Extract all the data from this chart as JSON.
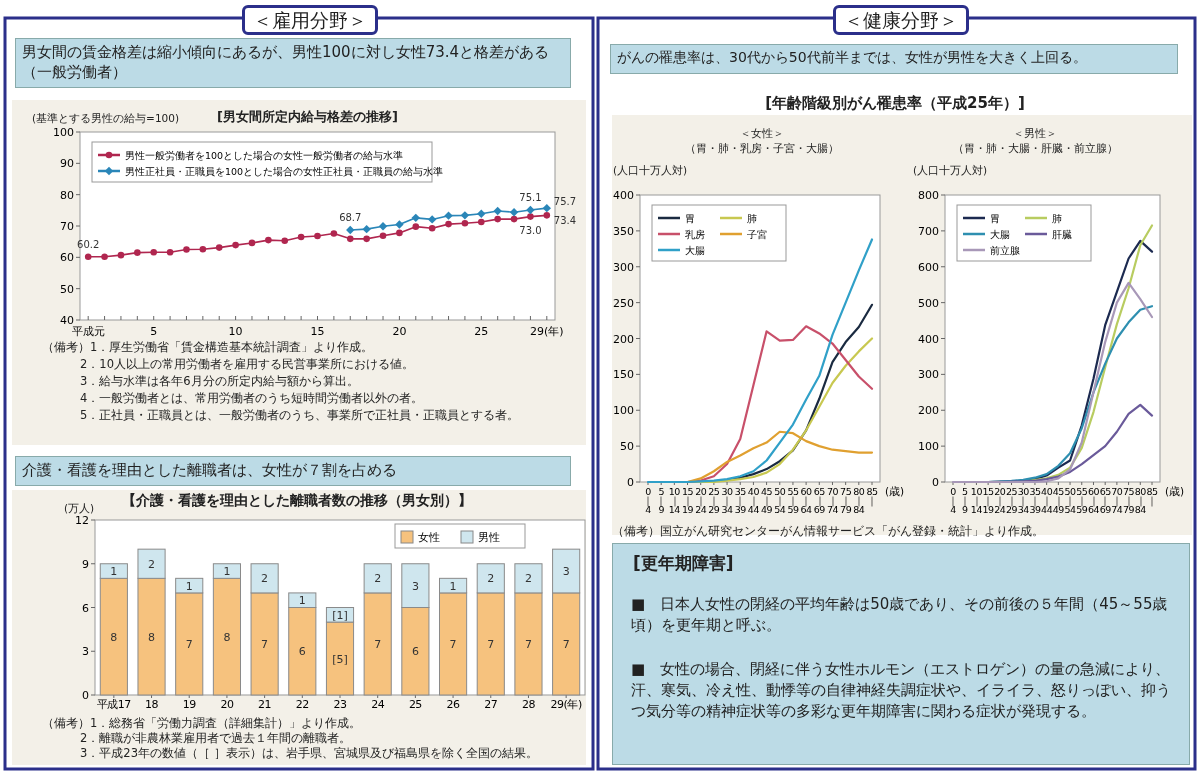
{
  "chart_data": [
    {
      "type": "line",
      "title": "[男女間所定内給与格差の推移]",
      "ylabel": "(基準とする男性の給与=100)",
      "annotations": [
        "＜雇用分野＞",
        "男女間の賃金格差は縮小傾向にあるが、男性100に対し女性73.4と格差がある（一般労働者）",
        "（備考）1．厚生労働省「賃金構造基本統計調査」より作成。",
        "2．10人以上の常用労働者を雇用する民営事業所における値。",
        "3．給与水準は各年6月分の所定内給与額から算出。",
        "4．一般労働者とは、常用労働者のうち短時間労働者以外の者。",
        "5．正社員・正職員とは、一般労働者のうち、事業所で正社員・正職員とする者。"
      ],
      "x": [
        1,
        2,
        3,
        4,
        5,
        6,
        7,
        8,
        9,
        10,
        11,
        12,
        13,
        14,
        15,
        16,
        17,
        18,
        19,
        20,
        21,
        22,
        23,
        24,
        25,
        26,
        27,
        28,
        29
      ],
      "series": [
        {
          "name": "男性一般労働者を100とした場合の女性一般労働者の給与水準",
          "color": "#b0264f",
          "marker": "circle",
          "values": [
            60.2,
            60.2,
            60.7,
            61.5,
            61.6,
            61.6,
            62.5,
            62.6,
            63.1,
            63.9,
            64.6,
            65.5,
            65.3,
            66.5,
            66.8,
            67.6,
            65.9,
            65.9,
            66.9,
            67.8,
            69.8,
            69.3,
            70.6,
            70.9,
            71.3,
            72.2,
            72.2,
            73.0,
            73.4
          ],
          "value_labels": [
            "60.2",
            null,
            null,
            null,
            null,
            null,
            null,
            null,
            null,
            null,
            null,
            null,
            null,
            null,
            null,
            null,
            null,
            null,
            null,
            null,
            null,
            null,
            null,
            null,
            null,
            null,
            null,
            "73.0",
            "73.4"
          ]
        },
        {
          "name": "男性正社員・正職員を100とした場合の女性正社員・正職員の給与水準",
          "color": "#2a86b8",
          "marker": "diamond",
          "x": [
            17,
            18,
            19,
            20,
            21,
            22,
            23,
            24,
            25,
            26,
            27,
            28,
            29
          ],
          "values": [
            68.7,
            69.0,
            69.9,
            70.5,
            72.6,
            72.1,
            73.3,
            73.4,
            73.9,
            74.8,
            74.4,
            75.1,
            75.7
          ],
          "value_labels": [
            "68.7",
            null,
            null,
            null,
            null,
            null,
            null,
            null,
            null,
            null,
            null,
            "75.1",
            "75.7"
          ]
        }
      ],
      "xlim": [
        0.5,
        29.5
      ],
      "xticks": [
        {
          "value": 1,
          "label": "平成元"
        },
        {
          "value": 2,
          "label": null
        },
        {
          "value": 3,
          "label": null
        },
        {
          "value": 4,
          "label": null
        },
        5,
        {
          "value": 6,
          "label": null
        },
        {
          "value": 7,
          "label": null
        },
        {
          "value": 8,
          "label": null
        },
        {
          "value": 9,
          "label": null
        },
        10,
        {
          "value": 11,
          "label": null
        },
        {
          "value": 12,
          "label": null
        },
        {
          "value": 13,
          "label": null
        },
        {
          "value": 14,
          "label": null
        },
        15,
        {
          "value": 16,
          "label": null
        },
        {
          "value": 17,
          "label": null
        },
        {
          "value": 18,
          "label": null
        },
        {
          "value": 19,
          "label": null
        },
        20,
        {
          "value": 21,
          "label": null
        },
        {
          "value": 22,
          "label": null
        },
        {
          "value": 23,
          "label": null
        },
        {
          "value": 24,
          "label": null
        },
        25,
        {
          "value": 26,
          "label": null
        },
        {
          "value": 27,
          "label": null
        },
        {
          "value": 28,
          "label": null
        },
        {
          "value": 29,
          "label": "29(年)"
        }
      ],
      "ylim": [
        40,
        100
      ],
      "yticks": [
        40,
        50,
        60,
        70,
        80,
        90,
        100
      ],
      "legend": "top left"
    },
    {
      "type": "bar",
      "stacked": true,
      "title": "【介護・看護を理由とした離職者数の推移（男女別）】",
      "ylabel": "(万人)",
      "annotations": [
        "介護・看護を理由とした離職者は、女性が７割を占める",
        "（備考）1．総務省「労働力調査（詳細集計）」より作成。",
        "2．離職が非農林業雇用者で過去１年間の離職者。",
        "3．平成23年の数値（［ ］表示）は、岩手県、宮城県及び福島県を除く全国の結果。"
      ],
      "categories": [
        "平成17",
        "18",
        "19",
        "20",
        "21",
        "22",
        "23",
        "24",
        "25",
        "26",
        "27",
        "28",
        "29(年)"
      ],
      "series": [
        {
          "name": "女性",
          "color": "#f6c27e",
          "values": [
            8,
            8,
            7,
            8,
            7,
            6,
            5,
            7,
            6,
            7,
            7,
            7,
            7
          ],
          "value_labels": [
            "8",
            "8",
            "7",
            "8",
            "7",
            "6",
            "[5]",
            "7",
            "6",
            "7",
            "7",
            "7",
            "7"
          ]
        },
        {
          "name": "男性",
          "color": "#cfe6ee",
          "values": [
            1,
            2,
            1,
            1,
            2,
            1,
            1,
            2,
            3,
            1,
            2,
            2,
            3
          ],
          "value_labels": [
            "1",
            "2",
            "1",
            "1",
            "2",
            "1",
            "[1]",
            "2",
            "3",
            "1",
            "2",
            "2",
            "3"
          ]
        }
      ],
      "ylim": [
        0,
        12
      ],
      "yticks": [
        0,
        3,
        6,
        9,
        12
      ],
      "legend": "top right"
    },
    {
      "type": "line",
      "title": "＜女性＞",
      "subtitle": "（胃・肺・乳房・子宮・大腸）",
      "ylabel": "(人口十万人対)",
      "xlabel": "(歳)",
      "annotations": [
        "＜健康分野＞",
        "がんの罹患率は、30代から50代前半までは、女性が男性を大きく上回る。",
        "[年齢階級別がん罹患率（平成25年）]"
      ],
      "categories": [
        "0\n｜\n4",
        "5\n｜\n9",
        "10\n｜\n14",
        "15\n｜\n19",
        "20\n｜\n24",
        "25\n｜\n29",
        "30\n｜\n34",
        "35\n｜\n39",
        "40\n｜\n44",
        "45\n｜\n49",
        "50\n｜\n54",
        "55\n｜\n59",
        "60\n｜\n64",
        "65\n｜\n69",
        "70\n｜\n74",
        "75\n｜\n79",
        "80\n｜\n84",
        "85\n｜"
      ],
      "series": [
        {
          "name": "胃",
          "color": "#1a2a40",
          "values": [
            null,
            null,
            null,
            0,
            0,
            1,
            3,
            6,
            11,
            18,
            29,
            44,
            72,
            116,
            167,
            195,
            216,
            247
          ]
        },
        {
          "name": "肺",
          "color": "#c8c850",
          "values": [
            null,
            null,
            null,
            0,
            0,
            0,
            2,
            4,
            7,
            13,
            25,
            45,
            72,
            105,
            138,
            162,
            182,
            200
          ]
        },
        {
          "name": "乳房",
          "color": "#c8506a",
          "values": [
            null,
            null,
            null,
            0,
            2,
            8,
            25,
            60,
            135,
            210,
            197,
            198,
            217,
            207,
            193,
            170,
            147,
            130
          ]
        },
        {
          "name": "子宮",
          "color": "#e0a030",
          "values": [
            null,
            null,
            null,
            0,
            5,
            15,
            28,
            37,
            47,
            55,
            70,
            68,
            57,
            50,
            45,
            43,
            41,
            41
          ]
        },
        {
          "name": "大腸",
          "color": "#30a0c8",
          "values": [
            0,
            0,
            0,
            0,
            1,
            2,
            4,
            8,
            15,
            30,
            55,
            80,
            115,
            148,
            205,
            250,
            295,
            338
          ]
        }
      ],
      "ylim": [
        0,
        400
      ],
      "yticks": [
        0,
        50,
        100,
        150,
        200,
        250,
        300,
        350,
        400
      ],
      "legend": "top left"
    },
    {
      "type": "line",
      "title": "＜男性＞",
      "subtitle": "（胃・肺・大腸・肝臓・前立腺）",
      "ylabel": "(人口十万人対)",
      "xlabel": "(歳)",
      "annotations": [
        "（備考）国立がん研究センターがん情報サービス「がん登録・統計」より作成。"
      ],
      "categories": [
        "0\n｜\n4",
        "5\n｜\n9",
        "10\n｜\n14",
        "15\n｜\n19",
        "20\n｜\n24",
        "25\n｜\n29",
        "30\n｜\n34",
        "35\n｜\n39",
        "40\n｜\n44",
        "45\n｜\n49",
        "50\n｜\n54",
        "55\n｜\n59",
        "60\n｜\n64",
        "65\n｜\n69",
        "70\n｜\n74",
        "75\n｜\n79",
        "80\n｜\n84",
        "85\n｜"
      ],
      "series": [
        {
          "name": "胃",
          "color": "#1c2a50",
          "values": [
            null,
            null,
            null,
            0,
            1,
            2,
            4,
            8,
            18,
            40,
            60,
            158,
            288,
            437,
            530,
            623,
            672,
            642
          ]
        },
        {
          "name": "肺",
          "color": "#b8cc60",
          "values": [
            null,
            null,
            null,
            null,
            null,
            null,
            2,
            5,
            10,
            20,
            40,
            95,
            195,
            320,
            440,
            540,
            660,
            715
          ]
        },
        {
          "name": "大腸",
          "color": "#2e8fb0",
          "values": [
            null,
            null,
            null,
            0,
            1,
            3,
            6,
            12,
            22,
            45,
            80,
            150,
            250,
            330,
            400,
            445,
            480,
            490
          ]
        },
        {
          "name": "肝臓",
          "color": "#6a5a9a",
          "values": [
            null,
            null,
            null,
            0,
            0,
            1,
            2,
            3,
            8,
            15,
            28,
            50,
            75,
            100,
            140,
            190,
            215,
            185
          ]
        },
        {
          "name": "前立腺",
          "color": "#a898b8",
          "values": [
            0,
            0,
            0,
            0,
            0,
            0,
            0,
            0,
            2,
            10,
            35,
            110,
            250,
            390,
            500,
            555,
            510,
            460
          ]
        }
      ],
      "ylim": [
        0,
        800
      ],
      "yticks": [
        0,
        100,
        200,
        300,
        400,
        500,
        600,
        700,
        800
      ],
      "legend": "top left"
    },
    {
      "type": "other",
      "title": "[更年期障害]",
      "annotations": [
        "■　日本人女性の閉経の平均年齢は50歳であり、その前後の５年間（45～55歳頃）を更年期と呼ぶ。",
        "■　女性の場合、閉経に伴う女性ホルモン（エストロゲン）の量の急減により、汗、寒気、冷え性、動悸等の自律神経失調症状や、イライラ、怒りっぽい、抑うつ気分等の精神症状等の多彩な更年期障害に関わる症状が発現する。"
      ]
    }
  ]
}
